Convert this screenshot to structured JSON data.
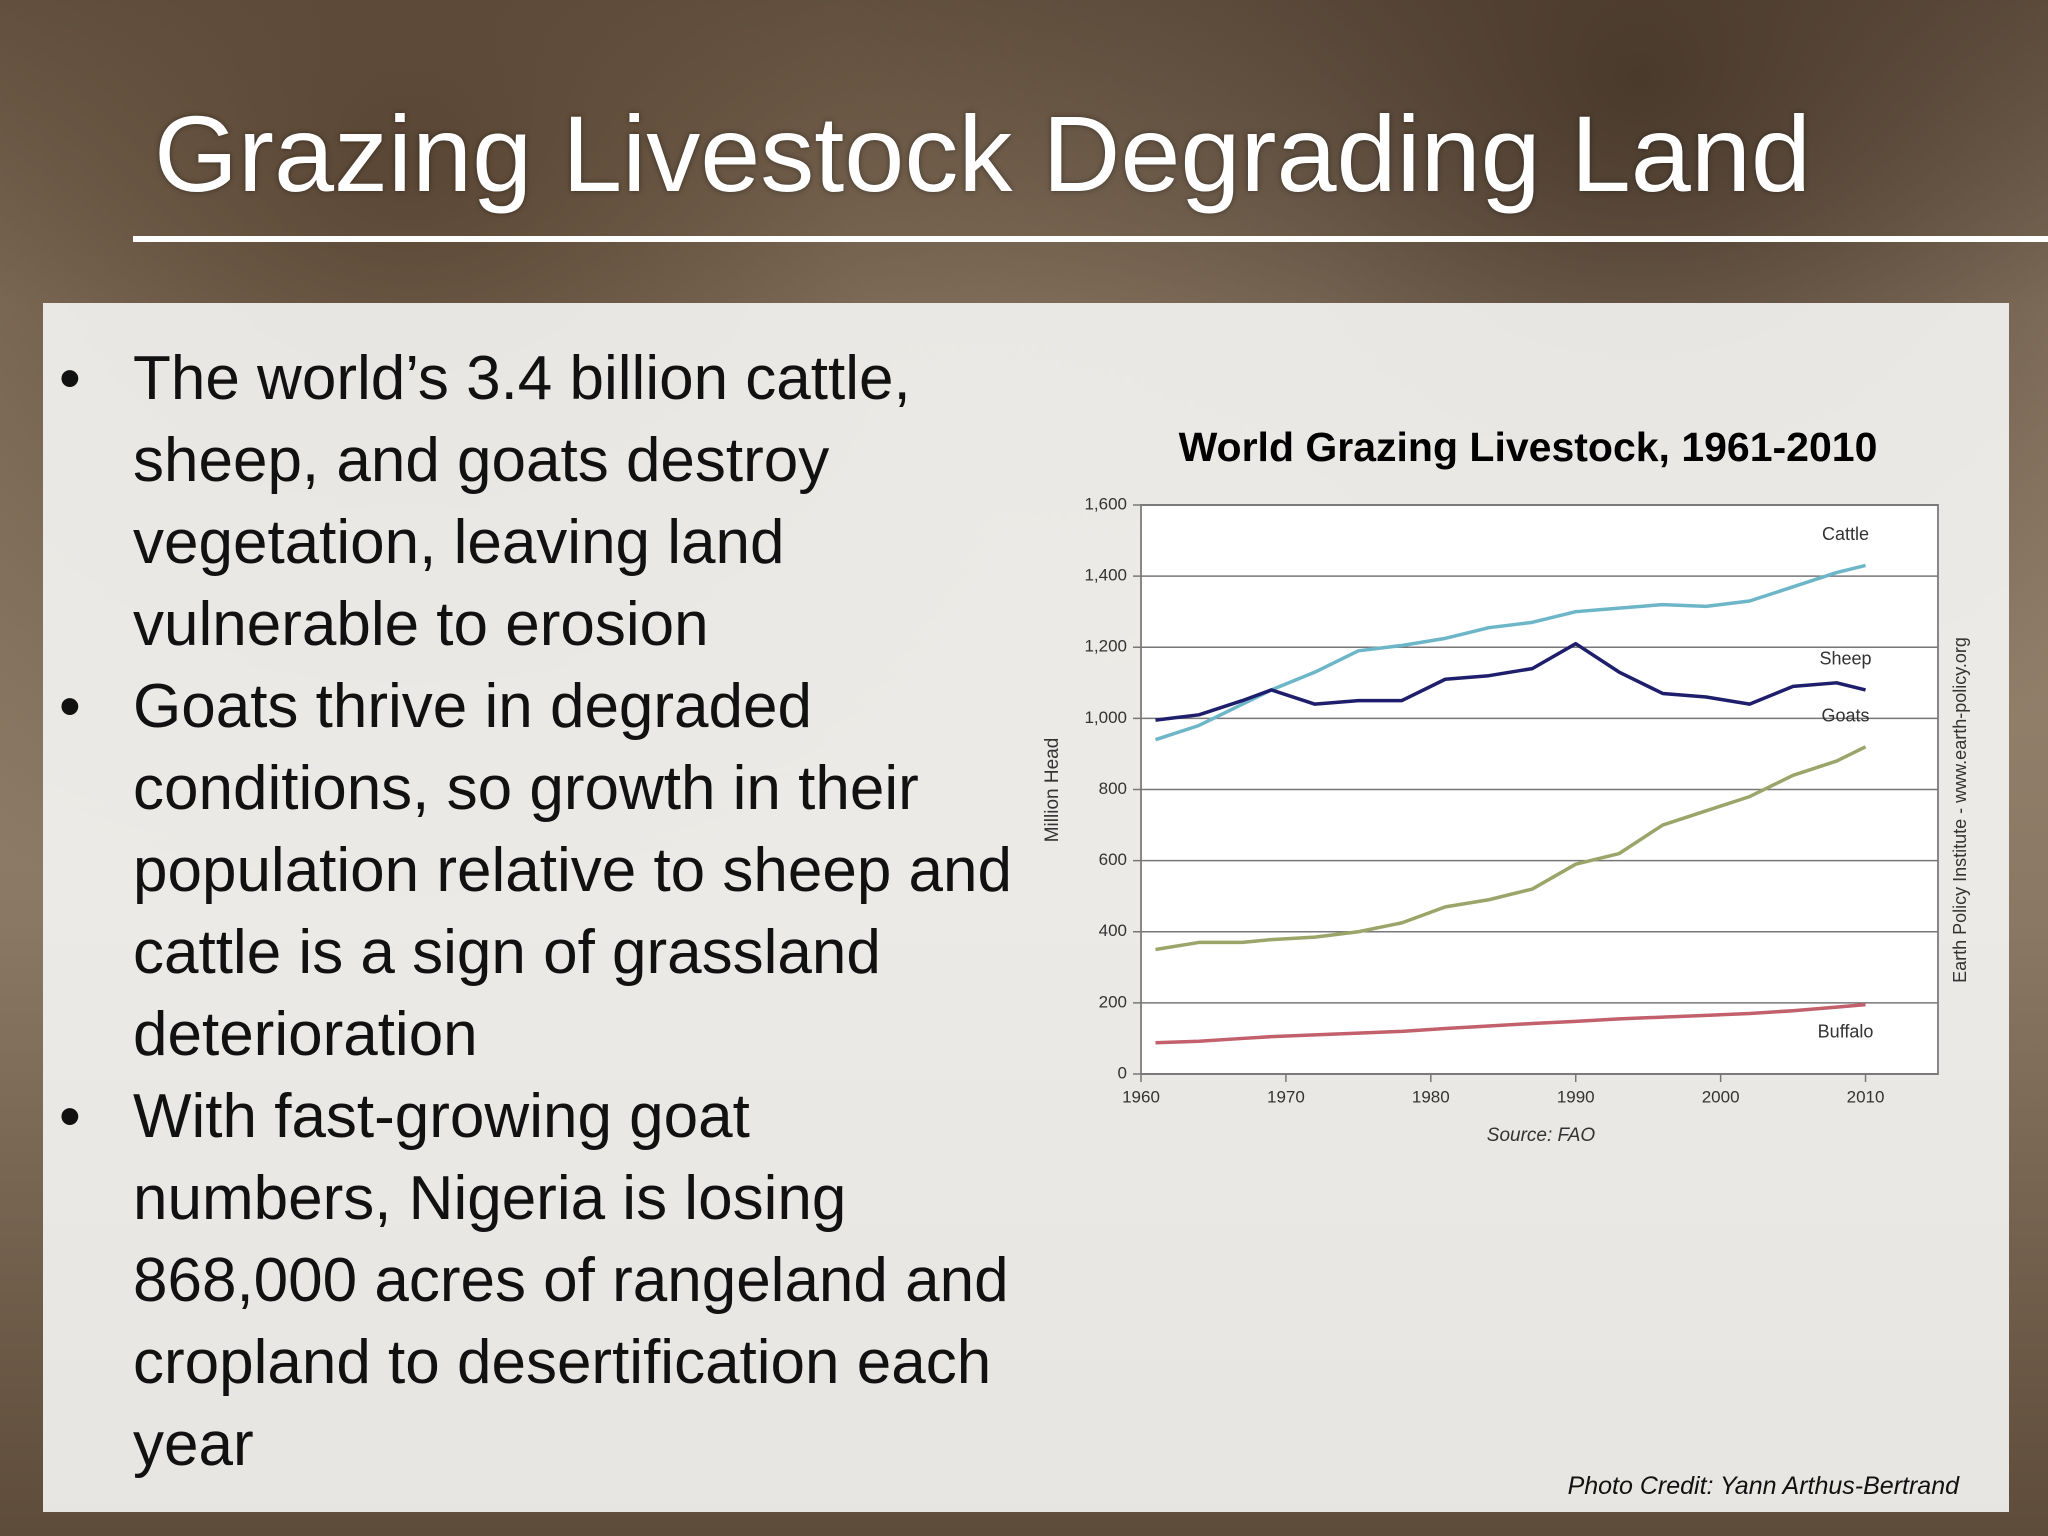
{
  "title": "Grazing Livestock Degrading Land",
  "bullets": [
    "The world’s 3.4 billion cattle, sheep, and goats destroy vegetation, leaving land vulnerable to erosion",
    "Goats thrive in degraded conditions, so growth in their population relative to sheep and cattle is a sign of grassland deterioration",
    "With fast-growing goat numbers, Nigeria is losing 868,000 acres of rangeland and cropland to desertification each year"
  ],
  "photo_credit": "Photo Credit: Yann Arthus-Bertrand",
  "chart_data": {
    "type": "line",
    "title": "World Grazing Livestock, 1961-2010",
    "y_label": "Million Head",
    "source": "Source: FAO",
    "side_note": "Earth Policy Institute - www.earth-policy.org",
    "x": [
      1961,
      1964,
      1967,
      1969,
      1972,
      1975,
      1978,
      1981,
      1984,
      1987,
      1990,
      1993,
      1996,
      1999,
      2002,
      2005,
      2008,
      2010
    ],
    "series": [
      {
        "name": "Cattle",
        "color": "#6cb6c8",
        "values": [
          940,
          980,
          1040,
          1080,
          1130,
          1190,
          1205,
          1225,
          1255,
          1270,
          1300,
          1310,
          1320,
          1315,
          1330,
          1370,
          1410,
          1430
        ]
      },
      {
        "name": "Sheep",
        "color": "#1e1e6c",
        "values": [
          995,
          1010,
          1050,
          1080,
          1040,
          1050,
          1050,
          1110,
          1120,
          1140,
          1210,
          1130,
          1070,
          1060,
          1040,
          1090,
          1100,
          1080
        ]
      },
      {
        "name": "Goats",
        "color": "#9aa56a",
        "values": [
          350,
          370,
          370,
          378,
          385,
          400,
          425,
          470,
          490,
          520,
          590,
          620,
          700,
          740,
          780,
          840,
          880,
          920
        ]
      },
      {
        "name": "Buffalo",
        "color": "#c2606c",
        "values": [
          88,
          92,
          100,
          105,
          110,
          115,
          120,
          128,
          135,
          142,
          148,
          155,
          160,
          165,
          170,
          178,
          188,
          195
        ]
      }
    ],
    "xlim": [
      1960,
      2015
    ],
    "xticks": [
      1960,
      1970,
      1980,
      1990,
      2000,
      2010
    ],
    "ylim": [
      0,
      1600
    ],
    "yticks": [
      0,
      200,
      400,
      600,
      800,
      {
        "value": 1000,
        "label": "1,000"
      },
      {
        "value": 1200,
        "label": "1,200"
      },
      {
        "value": 1400,
        "label": "1,400"
      },
      {
        "value": 1600,
        "label": "1,600"
      }
    ],
    "grid": true
  }
}
